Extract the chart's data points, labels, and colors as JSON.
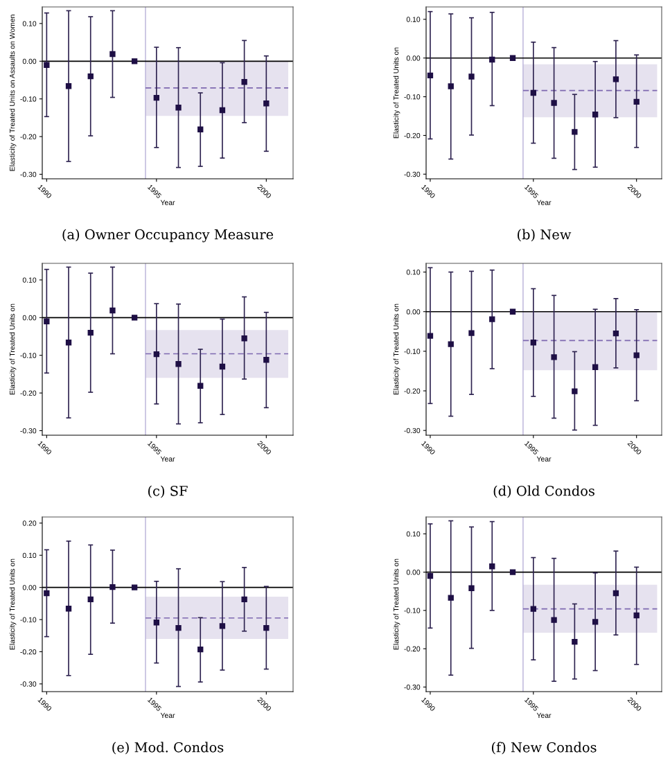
{
  "chart_data": [
    {
      "type": "scatter",
      "title": "(a) Owner Occupancy Measure",
      "xlabel": "Year",
      "ylabel": "Elasticity of Treated Units on Assaults on Women",
      "xlim": [
        1989.8,
        2001.22
      ],
      "xticks": [
        1990,
        1995,
        2000
      ],
      "ylim": [
        -0.312,
        0.144
      ],
      "yticks": [
        {
          "value": -0.3,
          "label": "-0.30"
        },
        {
          "value": -0.2,
          "label": "-0.20"
        },
        {
          "value": -0.1,
          "label": "-0.10"
        },
        {
          "value": 0,
          "label": "0.00"
        },
        {
          "value": 0.1,
          "label": "0.10"
        }
      ],
      "grid": false,
      "ref_lines": [
        {
          "axis": "x",
          "value": 1994.5,
          "color": "#b8b0d8"
        },
        {
          "axis": "y",
          "value": 0,
          "color": "#000000"
        }
      ],
      "series": [
        {
          "marker": "square",
          "color": "#1e0f45",
          "x": [
            1990,
            1991,
            1992,
            1993,
            1994,
            1995,
            1996,
            1997,
            1998,
            1999,
            2000
          ],
          "values": [
            -0.01,
            -0.066,
            -0.04,
            0.019,
            0,
            -0.097,
            -0.123,
            -0.181,
            -0.13,
            -0.055,
            -0.112
          ],
          "errors": [
            [
              -0.147,
              0.128
            ],
            [
              -0.266,
              0.134
            ],
            [
              -0.198,
              0.118
            ],
            [
              -0.096,
              0.134
            ],
            null,
            [
              -0.229,
              0.037
            ],
            [
              -0.282,
              0.036
            ],
            [
              -0.279,
              -0.084
            ],
            [
              -0.257,
              -0.004
            ],
            [
              -0.163,
              0.055
            ],
            [
              -0.239,
              0.014
            ]
          ]
        },
        {
          "type": "line",
          "marker": "none",
          "color": "#7e68b0",
          "line_style": "dashed",
          "x": [
            1994.5,
            2001
          ],
          "values": [
            -0.071,
            -0.071
          ],
          "lower": [
            -0.145,
            -0.145
          ],
          "upper": [
            0,
            0
          ]
        }
      ]
    },
    {
      "type": "scatter",
      "title": "(b) New",
      "xlabel": "Year",
      "ylabel": "Elasticity of Treated Units on",
      "xlim": [
        1989.8,
        2001.22
      ],
      "xticks": [
        1990,
        1995,
        2000
      ],
      "ylim": [
        -0.312,
        0.132
      ],
      "yticks": [
        {
          "value": -0.3,
          "label": "-0.30"
        },
        {
          "value": -0.2,
          "label": "-0.20"
        },
        {
          "value": -0.1,
          "label": "-0.10"
        },
        {
          "value": 0,
          "label": "0.00"
        },
        {
          "value": 0.1,
          "label": "0.10"
        }
      ],
      "grid": false,
      "ref_lines": [
        {
          "axis": "x",
          "value": 1994.5,
          "color": "#b8b0d8"
        },
        {
          "axis": "y",
          "value": 0,
          "color": "#000000"
        }
      ],
      "series": [
        {
          "marker": "square",
          "color": "#1e0f45",
          "x": [
            1990,
            1991,
            1992,
            1993,
            1994,
            1995,
            1996,
            1997,
            1998,
            1999,
            2000
          ],
          "values": [
            -0.045,
            -0.073,
            -0.048,
            -0.004,
            0,
            -0.09,
            -0.116,
            -0.191,
            -0.146,
            -0.055,
            -0.113
          ],
          "errors": [
            [
              -0.209,
              0.12
            ],
            [
              -0.261,
              0.114
            ],
            [
              -0.199,
              0.104
            ],
            [
              -0.123,
              0.118
            ],
            null,
            [
              -0.22,
              0.041
            ],
            [
              -0.259,
              0.027
            ],
            [
              -0.288,
              -0.094
            ],
            [
              -0.282,
              -0.009
            ],
            [
              -0.154,
              0.045
            ],
            [
              -0.231,
              0.008
            ]
          ]
        },
        {
          "type": "line",
          "marker": "none",
          "color": "#7e68b0",
          "line_style": "dashed",
          "x": [
            1994.5,
            2001
          ],
          "values": [
            -0.084,
            -0.084
          ],
          "lower": [
            -0.153,
            -0.153
          ],
          "upper": [
            -0.016,
            -0.016
          ]
        }
      ]
    },
    {
      "type": "scatter",
      "title": "(c) SF",
      "xlabel": "Year",
      "ylabel": "Elasticity of Treated Units on",
      "xlim": [
        1989.8,
        2001.22
      ],
      "xticks": [
        1990,
        1995,
        2000
      ],
      "ylim": [
        -0.312,
        0.144
      ],
      "yticks": [
        {
          "value": -0.3,
          "label": "-0.30"
        },
        {
          "value": -0.2,
          "label": "-0.20"
        },
        {
          "value": -0.1,
          "label": "-0.10"
        },
        {
          "value": 0,
          "label": "0.00"
        },
        {
          "value": 0.1,
          "label": "0.10"
        }
      ],
      "grid": false,
      "ref_lines": [
        {
          "axis": "x",
          "value": 1994.5,
          "color": "#b8b0d8"
        },
        {
          "axis": "y",
          "value": 0,
          "color": "#000000"
        }
      ],
      "series": [
        {
          "marker": "square",
          "color": "#1e0f45",
          "x": [
            1990,
            1991,
            1992,
            1993,
            1994,
            1995,
            1996,
            1997,
            1998,
            1999,
            2000
          ],
          "values": [
            -0.01,
            -0.066,
            -0.04,
            0.019,
            0,
            -0.097,
            -0.123,
            -0.181,
            -0.13,
            -0.055,
            -0.112
          ],
          "errors": [
            [
              -0.147,
              0.128
            ],
            [
              -0.266,
              0.134
            ],
            [
              -0.198,
              0.118
            ],
            [
              -0.096,
              0.134
            ],
            null,
            [
              -0.229,
              0.037
            ],
            [
              -0.282,
              0.036
            ],
            [
              -0.279,
              -0.084
            ],
            [
              -0.257,
              -0.004
            ],
            [
              -0.163,
              0.055
            ],
            [
              -0.239,
              0.014
            ]
          ]
        },
        {
          "type": "line",
          "marker": "none",
          "color": "#7e68b0",
          "line_style": "dashed",
          "x": [
            1994.5,
            2001
          ],
          "values": [
            -0.096,
            -0.096
          ],
          "lower": [
            -0.16,
            -0.16
          ],
          "upper": [
            -0.033,
            -0.033
          ]
        }
      ]
    },
    {
      "type": "scatter",
      "title": "(d) Old Condos",
      "xlabel": "Year",
      "ylabel": "Elasticity of Treated Units on",
      "xlim": [
        1989.8,
        2001.22
      ],
      "xticks": [
        1990,
        1995,
        2000
      ],
      "ylim": [
        -0.312,
        0.122
      ],
      "yticks": [
        {
          "value": -0.3,
          "label": "-0.30"
        },
        {
          "value": -0.2,
          "label": "-0.20"
        },
        {
          "value": -0.1,
          "label": "-0.10"
        },
        {
          "value": 0,
          "label": "0.00"
        },
        {
          "value": 0.1,
          "label": "0.10"
        }
      ],
      "grid": false,
      "ref_lines": [
        {
          "axis": "x",
          "value": 1994.5,
          "color": "#b8b0d8"
        },
        {
          "axis": "y",
          "value": 0,
          "color": "#000000"
        }
      ],
      "series": [
        {
          "marker": "square",
          "color": "#1e0f45",
          "x": [
            1990,
            1991,
            1992,
            1993,
            1994,
            1995,
            1996,
            1997,
            1998,
            1999,
            2000
          ],
          "values": [
            -0.061,
            -0.082,
            -0.054,
            -0.019,
            0,
            -0.078,
            -0.115,
            -0.201,
            -0.14,
            -0.055,
            -0.11
          ],
          "errors": [
            [
              -0.232,
              0.111
            ],
            [
              -0.264,
              0.1
            ],
            [
              -0.209,
              0.102
            ],
            [
              -0.144,
              0.105
            ],
            null,
            [
              -0.214,
              0.058
            ],
            [
              -0.269,
              0.041
            ],
            [
              -0.299,
              -0.101
            ],
            [
              -0.287,
              0.006
            ],
            [
              -0.142,
              0.033
            ],
            [
              -0.225,
              0.005
            ]
          ]
        },
        {
          "type": "line",
          "marker": "none",
          "color": "#7e68b0",
          "line_style": "dashed",
          "x": [
            1994.5,
            2001
          ],
          "values": [
            -0.073,
            -0.073
          ],
          "lower": [
            -0.148,
            -0.148
          ],
          "upper": [
            0,
            0
          ]
        }
      ]
    },
    {
      "type": "scatter",
      "title": "(e) Mod. Condos",
      "xlabel": "Year",
      "ylabel": "Elasticity of Treated Units on",
      "xlim": [
        1989.8,
        2001.22
      ],
      "xticks": [
        1990,
        1995,
        2000
      ],
      "ylim": [
        -0.324,
        0.219
      ],
      "yticks": [
        {
          "value": -0.3,
          "label": "-0.30"
        },
        {
          "value": -0.2,
          "label": "-0.20"
        },
        {
          "value": -0.1,
          "label": "-0.10"
        },
        {
          "value": 0,
          "label": "0.00"
        },
        {
          "value": 0.1,
          "label": "0.10"
        },
        {
          "value": 0.2,
          "label": "0.20"
        }
      ],
      "grid": false,
      "ref_lines": [
        {
          "axis": "x",
          "value": 1994.5,
          "color": "#b8b0d8"
        },
        {
          "axis": "y",
          "value": 0,
          "color": "#000000"
        }
      ],
      "series": [
        {
          "marker": "square",
          "color": "#1e0f45",
          "x": [
            1990,
            1991,
            1992,
            1993,
            1994,
            1995,
            1996,
            1997,
            1998,
            1999,
            2000
          ],
          "values": [
            -0.018,
            -0.066,
            -0.037,
            0.001,
            0,
            -0.109,
            -0.126,
            -0.193,
            -0.12,
            -0.037,
            -0.126
          ],
          "errors": [
            [
              -0.153,
              0.117
            ],
            [
              -0.274,
              0.144
            ],
            [
              -0.208,
              0.132
            ],
            [
              -0.111,
              0.116
            ],
            null,
            [
              -0.235,
              0.019
            ],
            [
              -0.308,
              0.058
            ],
            [
              -0.294,
              -0.094
            ],
            [
              -0.257,
              0.018
            ],
            [
              -0.136,
              0.062
            ],
            [
              -0.254,
              0.003
            ]
          ]
        },
        {
          "type": "line",
          "marker": "none",
          "color": "#7e68b0",
          "line_style": "dashed",
          "x": [
            1994.5,
            2001
          ],
          "values": [
            -0.095,
            -0.095
          ],
          "lower": [
            -0.16,
            -0.16
          ],
          "upper": [
            -0.029,
            -0.029
          ]
        }
      ]
    },
    {
      "type": "scatter",
      "title": "(f) New Condos",
      "xlabel": "Year",
      "ylabel": "Elasticity of Treated Units on",
      "xlim": [
        1989.8,
        2001.22
      ],
      "xticks": [
        1990,
        1995,
        2000
      ],
      "ylim": [
        -0.312,
        0.144
      ],
      "yticks": [
        {
          "value": -0.3,
          "label": "-0.30"
        },
        {
          "value": -0.2,
          "label": "-0.20"
        },
        {
          "value": -0.1,
          "label": "-0.10"
        },
        {
          "value": 0,
          "label": "0.00"
        },
        {
          "value": 0.1,
          "label": "0.10"
        }
      ],
      "grid": false,
      "ref_lines": [
        {
          "axis": "x",
          "value": 1994.5,
          "color": "#b8b0d8"
        },
        {
          "axis": "y",
          "value": 0,
          "color": "#000000"
        }
      ],
      "series": [
        {
          "marker": "square",
          "color": "#1e0f45",
          "x": [
            1990,
            1991,
            1992,
            1993,
            1994,
            1995,
            1996,
            1997,
            1998,
            1999,
            2000
          ],
          "values": [
            -0.01,
            -0.067,
            -0.042,
            0.015,
            0,
            -0.096,
            -0.125,
            -0.182,
            -0.13,
            -0.055,
            -0.113
          ],
          "errors": [
            [
              -0.146,
              0.126
            ],
            [
              -0.269,
              0.134
            ],
            [
              -0.199,
              0.118
            ],
            [
              -0.1,
              0.132
            ],
            null,
            [
              -0.229,
              0.038
            ],
            [
              -0.285,
              0.036
            ],
            [
              -0.279,
              -0.083
            ],
            [
              -0.257,
              -0.002
            ],
            [
              -0.164,
              0.055
            ],
            [
              -0.241,
              0.013
            ]
          ]
        },
        {
          "type": "line",
          "marker": "none",
          "color": "#7e68b0",
          "line_style": "dashed",
          "x": [
            1994.5,
            2001
          ],
          "values": [
            -0.096,
            -0.096
          ],
          "lower": [
            -0.158,
            -0.158
          ],
          "upper": [
            -0.033,
            -0.033
          ]
        }
      ]
    }
  ]
}
